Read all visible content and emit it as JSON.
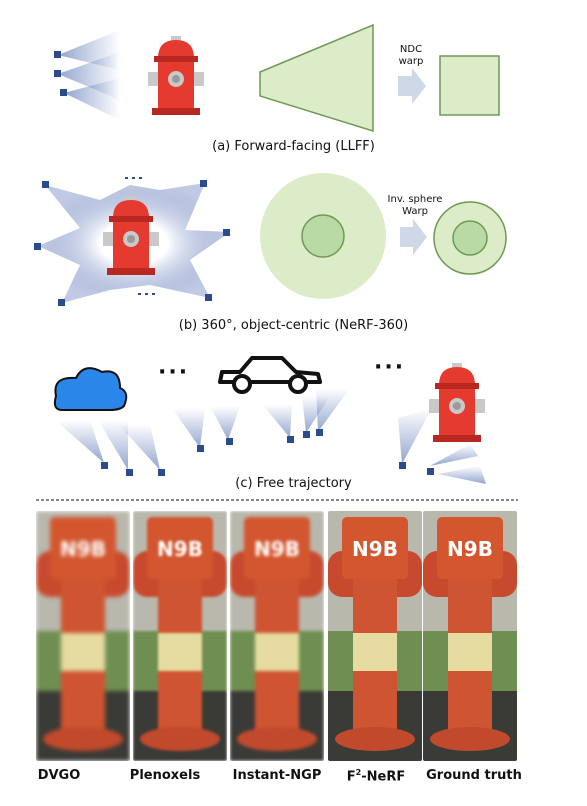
{
  "panels": {
    "a": {
      "caption": "(a) Forward-facing (LLFF)",
      "warp_label_1": "NDC",
      "warp_label_2": "warp"
    },
    "b": {
      "caption": "(b) 360°, object-centric (NeRF-360)",
      "warp_label_1": "Inv. sphere",
      "warp_label_2": "Warp"
    },
    "c": {
      "caption": "(c) Free trajectory",
      "ellipsis_left": "···",
      "ellipsis_right": "···"
    }
  },
  "comparison": {
    "methods": [
      {
        "name": "DVGO",
        "sign": "N9B"
      },
      {
        "name": "Plenoxels",
        "sign": "N9B"
      },
      {
        "name": "Instant-NGP",
        "sign": "N9B"
      },
      {
        "name": "F²-NeRF",
        "name_base": "F",
        "name_sup": "2",
        "name_rest": "-NeRF",
        "sign": "N9B"
      },
      {
        "name": "Ground truth",
        "sign": "N9B"
      }
    ]
  },
  "colors": {
    "region_fill": "#dcebc8",
    "region_stroke": "#6f9a55",
    "inner_fill": "#b9d9a5",
    "camera": "#2a4b8d",
    "hydrant_red": "#e53a2f",
    "hydrant_dark": "#b82820",
    "cloud": "#2a86e8",
    "arrow": "#cfd8e6"
  }
}
